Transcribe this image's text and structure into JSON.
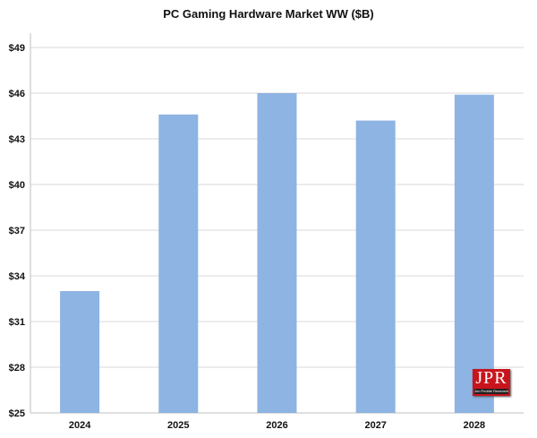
{
  "chart_data": {
    "type": "bar",
    "title": "PC Gaming  Hardware Market WW ($B)",
    "xlabel": "",
    "ylabel": "",
    "categories": [
      "2024",
      "2025",
      "2026",
      "2027",
      "2028"
    ],
    "values": [
      33.0,
      44.6,
      46.0,
      44.2,
      45.9
    ],
    "ylim": [
      25,
      49
    ],
    "yticks": [
      25,
      28,
      31,
      34,
      37,
      40,
      43,
      46,
      49
    ],
    "ytick_prefix": "$",
    "grid": true,
    "bar_color": "#8db4e2",
    "grid_color": "#d9d9d9"
  },
  "logo": {
    "main": "JPR",
    "sub": "Jon Peddie Research"
  }
}
